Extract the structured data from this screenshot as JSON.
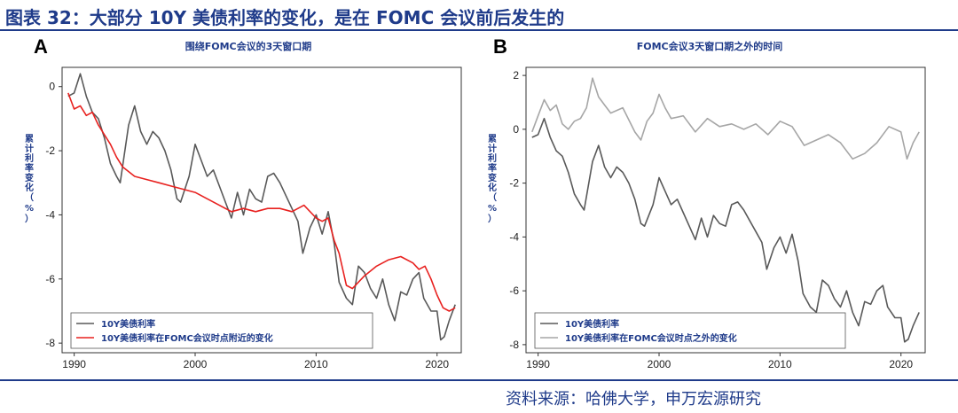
{
  "figure": {
    "title": "图表 32：大部分 10Y 美债利率的变化，是在 FOMC 会议前后发生的",
    "source": "资料来源：哈佛大学，申万宏源研究"
  },
  "colors": {
    "brand": "#1f3b8a",
    "red": "#e8211f",
    "dark_gray": "#595959",
    "light_gray": "#a6a6a6"
  },
  "chart_data": [
    {
      "panel": "A",
      "type": "line",
      "title": "围绕FOMC会议的3天窗口期",
      "ylabel": "累计利率变化（%）",
      "xlim": [
        1989,
        2022
      ],
      "ylim": [
        -8.3,
        0.6
      ],
      "xticks": [
        1990,
        2000,
        2010,
        2020
      ],
      "yticks": [
        0,
        -2,
        -4,
        -6,
        -8
      ],
      "legend_position": "bottom-left",
      "series": [
        {
          "name": "10Y美债利率",
          "color": "#595959",
          "x": [
            1989.5,
            1990.0,
            1990.5,
            1991.0,
            1991.5,
            1992.0,
            1992.5,
            1993.0,
            1993.5,
            1993.8,
            1994.5,
            1995.0,
            1995.5,
            1996.0,
            1996.5,
            1997.0,
            1997.5,
            1998.0,
            1998.5,
            1998.8,
            1999.5,
            2000.0,
            2000.5,
            2001.0,
            2001.5,
            2002.0,
            2002.5,
            2003.0,
            2003.5,
            2004.0,
            2004.5,
            2005.0,
            2005.5,
            2006.0,
            2006.5,
            2007.0,
            2007.5,
            2008.0,
            2008.5,
            2008.9,
            2009.5,
            2010.0,
            2010.5,
            2011.0,
            2011.5,
            2011.9,
            2012.5,
            2013.0,
            2013.5,
            2014.0,
            2014.5,
            2015.0,
            2015.5,
            2016.0,
            2016.5,
            2017.0,
            2017.5,
            2018.0,
            2018.5,
            2018.9,
            2019.5,
            2020.0,
            2020.3,
            2020.6,
            2021.0,
            2021.5
          ],
          "y": [
            -0.3,
            -0.2,
            0.4,
            -0.3,
            -0.8,
            -1.0,
            -1.6,
            -2.4,
            -2.8,
            -3.0,
            -1.2,
            -0.6,
            -1.4,
            -1.8,
            -1.4,
            -1.6,
            -2.0,
            -2.6,
            -3.5,
            -3.6,
            -2.8,
            -1.8,
            -2.3,
            -2.8,
            -2.6,
            -3.1,
            -3.6,
            -4.1,
            -3.3,
            -4.0,
            -3.2,
            -3.5,
            -3.6,
            -2.8,
            -2.7,
            -3.0,
            -3.4,
            -3.8,
            -4.2,
            -5.2,
            -4.4,
            -4.0,
            -4.6,
            -3.9,
            -4.9,
            -6.1,
            -6.6,
            -6.8,
            -5.6,
            -5.8,
            -6.3,
            -6.6,
            -6.0,
            -6.8,
            -7.3,
            -6.4,
            -6.5,
            -6.0,
            -5.8,
            -6.6,
            -7.0,
            -7.0,
            -7.9,
            -7.8,
            -7.3,
            -6.8
          ]
        },
        {
          "name": "10Y美债利率在FOMC会议时点附近的变化",
          "color": "#e8211f",
          "x": [
            1989.5,
            1990.0,
            1990.5,
            1991.0,
            1991.5,
            1992.0,
            1992.5,
            1993.0,
            1993.5,
            1994.0,
            1995.0,
            1996.0,
            1997.0,
            1998.0,
            1999.0,
            2000.0,
            2001.0,
            2002.0,
            2003.0,
            2004.0,
            2005.0,
            2006.0,
            2007.0,
            2008.0,
            2009.0,
            2010.0,
            2010.5,
            2011.0,
            2011.5,
            2011.9,
            2012.5,
            2013.0,
            2014.0,
            2015.0,
            2016.0,
            2017.0,
            2018.0,
            2018.5,
            2019.0,
            2019.5,
            2020.0,
            2020.5,
            2021.0,
            2021.5
          ],
          "y": [
            -0.2,
            -0.7,
            -0.6,
            -0.9,
            -0.8,
            -1.2,
            -1.5,
            -1.8,
            -2.2,
            -2.5,
            -2.8,
            -2.9,
            -3.0,
            -3.1,
            -3.2,
            -3.3,
            -3.5,
            -3.7,
            -3.9,
            -3.8,
            -3.9,
            -3.8,
            -3.8,
            -3.9,
            -3.7,
            -4.1,
            -4.2,
            -4.1,
            -4.8,
            -5.2,
            -6.2,
            -6.3,
            -5.9,
            -5.6,
            -5.4,
            -5.3,
            -5.5,
            -5.7,
            -5.6,
            -6.0,
            -6.5,
            -6.9,
            -7.0,
            -6.9
          ]
        }
      ]
    },
    {
      "panel": "B",
      "type": "line",
      "title": "FOMC会议3天窗口期之外的时间",
      "ylabel": "累计利率变化（%）",
      "xlim": [
        1989,
        2022
      ],
      "ylim": [
        -8.3,
        2.3
      ],
      "xticks": [
        1990,
        2000,
        2010,
        2020
      ],
      "yticks": [
        2,
        0,
        -2,
        -4,
        -6,
        -8
      ],
      "legend_position": "bottom-left",
      "series": [
        {
          "name": "10Y美债利率",
          "color": "#595959",
          "x": [
            1989.5,
            1990.0,
            1990.5,
            1991.0,
            1991.5,
            1992.0,
            1992.5,
            1993.0,
            1993.5,
            1993.8,
            1994.5,
            1995.0,
            1995.5,
            1996.0,
            1996.5,
            1997.0,
            1997.5,
            1998.0,
            1998.5,
            1998.8,
            1999.5,
            2000.0,
            2000.5,
            2001.0,
            2001.5,
            2002.0,
            2002.5,
            2003.0,
            2003.5,
            2004.0,
            2004.5,
            2005.0,
            2005.5,
            2006.0,
            2006.5,
            2007.0,
            2007.5,
            2008.0,
            2008.5,
            2008.9,
            2009.5,
            2010.0,
            2010.5,
            2011.0,
            2011.5,
            2011.9,
            2012.5,
            2013.0,
            2013.5,
            2014.0,
            2014.5,
            2015.0,
            2015.5,
            2016.0,
            2016.5,
            2017.0,
            2017.5,
            2018.0,
            2018.5,
            2018.9,
            2019.5,
            2020.0,
            2020.3,
            2020.6,
            2021.0,
            2021.5
          ],
          "y": [
            -0.3,
            -0.2,
            0.4,
            -0.3,
            -0.8,
            -1.0,
            -1.6,
            -2.4,
            -2.8,
            -3.0,
            -1.2,
            -0.6,
            -1.4,
            -1.8,
            -1.4,
            -1.6,
            -2.0,
            -2.6,
            -3.5,
            -3.6,
            -2.8,
            -1.8,
            -2.3,
            -2.8,
            -2.6,
            -3.1,
            -3.6,
            -4.1,
            -3.3,
            -4.0,
            -3.2,
            -3.5,
            -3.6,
            -2.8,
            -2.7,
            -3.0,
            -3.4,
            -3.8,
            -4.2,
            -5.2,
            -4.4,
            -4.0,
            -4.6,
            -3.9,
            -4.9,
            -6.1,
            -6.6,
            -6.8,
            -5.6,
            -5.8,
            -6.3,
            -6.6,
            -6.0,
            -6.8,
            -7.3,
            -6.4,
            -6.5,
            -6.0,
            -5.8,
            -6.6,
            -7.0,
            -7.0,
            -7.9,
            -7.8,
            -7.3,
            -6.8
          ]
        },
        {
          "name": "10Y美债利率在FOMC会议时点之外的变化",
          "color": "#a6a6a6",
          "x": [
            1989.5,
            1990.0,
            1990.5,
            1991.0,
            1991.5,
            1992.0,
            1992.5,
            1993.0,
            1993.5,
            1994.0,
            1994.5,
            1995.0,
            1995.5,
            1996.0,
            1997.0,
            1998.0,
            1998.5,
            1999.0,
            1999.5,
            2000.0,
            2000.5,
            2001.0,
            2002.0,
            2003.0,
            2004.0,
            2005.0,
            2006.0,
            2007.0,
            2008.0,
            2009.0,
            2010.0,
            2011.0,
            2012.0,
            2013.0,
            2014.0,
            2015.0,
            2016.0,
            2017.0,
            2018.0,
            2019.0,
            2020.0,
            2020.5,
            2021.0,
            2021.5
          ],
          "y": [
            -0.1,
            0.5,
            1.1,
            0.7,
            0.9,
            0.2,
            0.0,
            0.3,
            0.4,
            0.8,
            1.9,
            1.2,
            0.9,
            0.6,
            0.8,
            -0.1,
            -0.4,
            0.3,
            0.6,
            1.3,
            0.8,
            0.4,
            0.5,
            -0.1,
            0.4,
            0.1,
            0.2,
            0.0,
            0.2,
            -0.2,
            0.3,
            0.1,
            -0.6,
            -0.4,
            -0.2,
            -0.5,
            -1.1,
            -0.9,
            -0.5,
            0.1,
            -0.1,
            -1.1,
            -0.5,
            -0.1
          ]
        }
      ]
    }
  ]
}
